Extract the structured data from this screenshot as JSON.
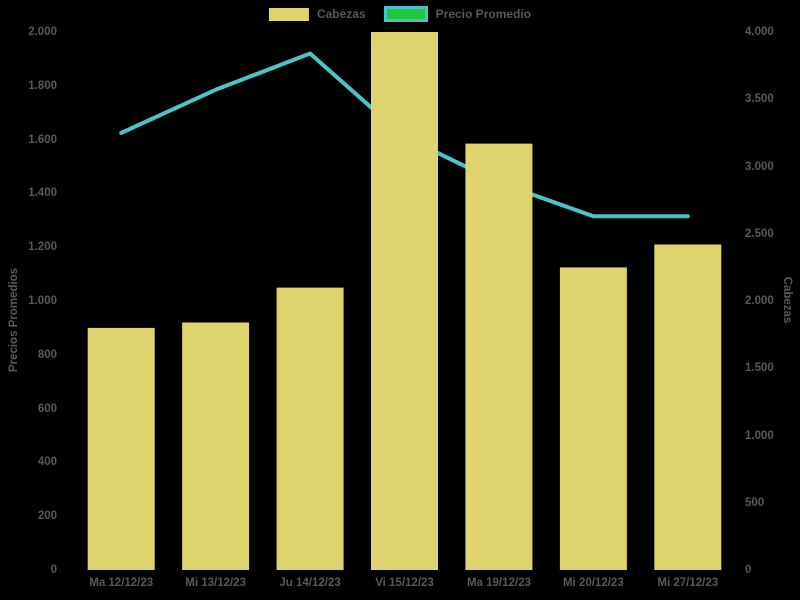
{
  "chart_data": {
    "type": "bar",
    "title": "",
    "categories": [
      "Ma 12/12/23",
      "Mi 13/12/23",
      "Ju 14/12/23",
      "Vi 15/12/23",
      "Ma 19/12/23",
      "Mi 20/12/23",
      "Mi 27/12/23"
    ],
    "series": [
      {
        "name": "Cabezas",
        "type": "bar",
        "axis": "right",
        "color": "#dfd36e",
        "values": [
          1800,
          1840,
          2100,
          4000,
          3170,
          2250,
          2420
        ]
      },
      {
        "name": "Precio Promedio",
        "type": "line",
        "axis": "left",
        "color": "#4ac5c5",
        "values": [
          1625,
          1785,
          1920,
          1610,
          1440,
          1315,
          1315
        ]
      }
    ],
    "left_axis": {
      "title": "Precios Promedios",
      "min": 0,
      "max": 2000,
      "ticks": [
        {
          "v": 0,
          "label": "0"
        },
        {
          "v": 200,
          "label": "200"
        },
        {
          "v": 400,
          "label": "400"
        },
        {
          "v": 600,
          "label": "600"
        },
        {
          "v": 800,
          "label": "800"
        },
        {
          "v": 1000,
          "label": "1.000"
        },
        {
          "v": 1200,
          "label": "1.200"
        },
        {
          "v": 1400,
          "label": "1.400"
        },
        {
          "v": 1600,
          "label": "1.600"
        },
        {
          "v": 1800,
          "label": "1.800"
        },
        {
          "v": 2000,
          "label": "2.000"
        }
      ]
    },
    "right_axis": {
      "title": "Cabezas",
      "min": 0,
      "max": 4000,
      "ticks": [
        {
          "v": 0,
          "label": "0"
        },
        {
          "v": 500,
          "label": "500"
        },
        {
          "v": 1000,
          "label": "1.000"
        },
        {
          "v": 1500,
          "label": "1.500"
        },
        {
          "v": 2000,
          "label": "2.000"
        },
        {
          "v": 2500,
          "label": "2.500"
        },
        {
          "v": 3000,
          "label": "3.000"
        },
        {
          "v": 3500,
          "label": "3.500"
        },
        {
          "v": 4000,
          "label": "4.000"
        }
      ]
    },
    "legend": {
      "position": "top-center",
      "items": [
        {
          "label": "Cabezas",
          "fill": "#dfd36e",
          "border": "none"
        },
        {
          "label": "Precio Promedio",
          "fill": "#1ec73c",
          "border": "#4ac5c5"
        }
      ]
    },
    "background": "#000000",
    "text_color": "#595959",
    "grid": false,
    "line_drawn_behind_bars": true
  }
}
